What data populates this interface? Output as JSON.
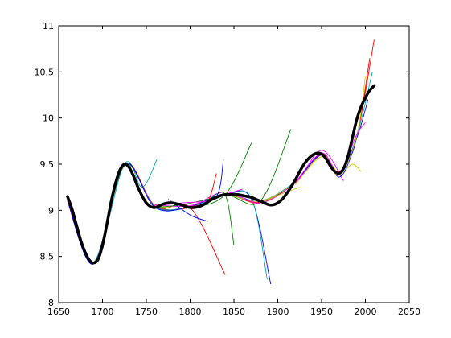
{
  "chart_data": {
    "type": "line",
    "title": "",
    "xlabel": "",
    "ylabel": "",
    "xlim": [
      1650,
      2050
    ],
    "ylim": [
      8,
      11
    ],
    "grid": false,
    "x_ticks": [
      1650,
      1700,
      1750,
      1800,
      1850,
      1900,
      1950,
      2000,
      2050
    ],
    "y_ticks": [
      8,
      8.5,
      9,
      9.5,
      10,
      10.5,
      11
    ],
    "x_tick_labels": [
      "1650",
      "1700",
      "1750",
      "1800",
      "1850",
      "1900",
      "1950",
      "2000",
      "2050"
    ],
    "y_tick_labels": [
      "8",
      "8.5",
      "9",
      "9.5",
      "10",
      "10.5",
      "11"
    ],
    "main_series": {
      "color": "#000000",
      "x": [
        1660,
        1665,
        1670,
        1675,
        1680,
        1685,
        1690,
        1695,
        1700,
        1705,
        1710,
        1715,
        1720,
        1725,
        1730,
        1735,
        1740,
        1745,
        1750,
        1755,
        1760,
        1765,
        1770,
        1775,
        1780,
        1785,
        1790,
        1795,
        1800,
        1805,
        1810,
        1815,
        1820,
        1825,
        1830,
        1835,
        1840,
        1845,
        1850,
        1855,
        1860,
        1865,
        1870,
        1875,
        1880,
        1885,
        1890,
        1895,
        1900,
        1905,
        1910,
        1915,
        1920,
        1925,
        1930,
        1935,
        1940,
        1945,
        1950,
        1955,
        1960,
        1965,
        1970,
        1975,
        1980,
        1985,
        1990,
        1995,
        2000,
        2005,
        2010
      ],
      "y": [
        9.15,
        9.02,
        8.85,
        8.68,
        8.55,
        8.46,
        8.43,
        8.47,
        8.62,
        8.85,
        9.1,
        9.3,
        9.44,
        9.5,
        9.47,
        9.38,
        9.26,
        9.16,
        9.08,
        9.04,
        9.03,
        9.05,
        9.07,
        9.08,
        9.08,
        9.07,
        9.06,
        9.04,
        9.03,
        9.03,
        9.04,
        9.06,
        9.09,
        9.12,
        9.14,
        9.16,
        9.17,
        9.17,
        9.17,
        9.17,
        9.16,
        9.15,
        9.14,
        9.12,
        9.1,
        9.08,
        9.06,
        9.06,
        9.08,
        9.12,
        9.18,
        9.25,
        9.33,
        9.42,
        9.5,
        9.56,
        9.6,
        9.62,
        9.61,
        9.56,
        9.48,
        9.42,
        9.4,
        9.45,
        9.58,
        9.78,
        9.98,
        10.12,
        10.22,
        10.3,
        10.35
      ]
    },
    "series": [
      {
        "color": "#ff0000",
        "x": [
          1660,
          1690,
          1725,
          1760,
          1800,
          1840
        ],
        "y": [
          9.1,
          8.43,
          9.5,
          9.03,
          9.03,
          8.3
        ]
      },
      {
        "color": "#00aaaa",
        "x": [
          1660,
          1690,
          1725,
          1745,
          1762
        ],
        "y": [
          9.12,
          8.43,
          9.5,
          9.25,
          9.55
        ]
      },
      {
        "color": "#008000",
        "x": [
          1660,
          1690,
          1725,
          1760,
          1800,
          1840,
          1870
        ],
        "y": [
          9.1,
          8.43,
          9.48,
          9.04,
          9.03,
          9.17,
          9.73
        ]
      },
      {
        "color": "#0000ff",
        "x": [
          1660,
          1690,
          1725,
          1760,
          1800,
          1840,
          1870,
          1892
        ],
        "y": [
          9.12,
          8.44,
          9.5,
          9.04,
          9.04,
          9.17,
          9.12,
          8.2
        ]
      },
      {
        "color": "#00aaaa",
        "x": [
          1660,
          1690,
          1725,
          1760,
          1800,
          1840,
          1870,
          1888
        ],
        "y": [
          9.14,
          8.44,
          9.49,
          9.05,
          9.03,
          9.16,
          9.13,
          8.25
        ]
      },
      {
        "color": "#008000",
        "x": [
          1660,
          1690,
          1725,
          1760,
          1800,
          1840,
          1880,
          1915
        ],
        "y": [
          9.13,
          8.43,
          9.5,
          9.04,
          9.04,
          9.17,
          9.1,
          9.88
        ]
      },
      {
        "color": "#ff0000",
        "x": [
          1660,
          1690,
          1725,
          1760,
          1800,
          1840,
          1880,
          1920,
          1950,
          1970,
          1990,
          2010
        ],
        "y": [
          9.1,
          8.43,
          9.49,
          9.04,
          9.04,
          9.17,
          9.09,
          9.3,
          9.6,
          9.42,
          9.8,
          10.85
        ]
      },
      {
        "color": "#ff0000",
        "x": [
          1660,
          1690,
          1725,
          1760,
          1800,
          1840,
          1880,
          1920,
          1950,
          1970,
          1990,
          2005
        ],
        "y": [
          9.12,
          8.43,
          9.5,
          9.05,
          9.03,
          9.17,
          9.08,
          9.3,
          9.61,
          9.41,
          9.8,
          10.65
        ]
      },
      {
        "color": "#00aaaa",
        "x": [
          1660,
          1690,
          1725,
          1760,
          1800,
          1840,
          1880,
          1920,
          1950,
          1970,
          1990,
          2008
        ],
        "y": [
          9.14,
          8.44,
          9.49,
          9.04,
          9.04,
          9.16,
          9.1,
          9.31,
          9.6,
          9.4,
          9.8,
          10.5
        ]
      },
      {
        "color": "#0000ff",
        "x": [
          1660,
          1690,
          1725,
          1760,
          1800,
          1840,
          1880,
          1920,
          1950,
          1970,
          1990,
          2003
        ],
        "y": [
          9.11,
          8.42,
          9.5,
          9.03,
          9.04,
          9.18,
          9.1,
          9.3,
          9.62,
          9.4,
          9.78,
          10.2
        ]
      },
      {
        "color": "#cccc00",
        "x": [
          1760,
          1800,
          1840,
          1880,
          1920,
          1950,
          1970,
          1985,
          1995
        ],
        "y": [
          9.04,
          9.03,
          9.16,
          9.1,
          9.3,
          9.6,
          9.4,
          9.5,
          9.42
        ]
      },
      {
        "color": "#ff00ff",
        "x": [
          1760,
          1800,
          1840,
          1880,
          1920,
          1950,
          1975
        ],
        "y": [
          9.06,
          9.05,
          9.2,
          9.08,
          9.3,
          9.65,
          9.32
        ]
      },
      {
        "color": "#008000",
        "x": [
          1760,
          1790,
          1820,
          1840,
          1850
        ],
        "y": [
          9.03,
          9.06,
          9.12,
          9.17,
          8.62
        ]
      },
      {
        "color": "#ff00ff",
        "x": [
          1755,
          1790,
          1820,
          1840,
          1860
        ],
        "y": [
          9.04,
          9.08,
          9.1,
          9.17,
          9.23
        ]
      },
      {
        "color": "#0000ff",
        "x": [
          1775,
          1800,
          1820
        ],
        "y": [
          9.12,
          8.95,
          8.88
        ]
      },
      {
        "color": "#0000ff",
        "x": [
          1800,
          1830,
          1838
        ],
        "y": [
          9.03,
          9.15,
          9.55
        ]
      },
      {
        "color": "#ff0000",
        "x": [
          1800,
          1820,
          1830
        ],
        "y": [
          9.04,
          9.1,
          9.4
        ]
      },
      {
        "color": "#cccc00",
        "x": [
          1880,
          1905,
          1925
        ],
        "y": [
          9.08,
          9.18,
          9.25
        ]
      },
      {
        "color": "#0000ff",
        "x": [
          1920,
          1950,
          1970,
          1985,
          1992
        ],
        "y": [
          9.3,
          9.6,
          9.36,
          9.62,
          9.88
        ]
      },
      {
        "color": "#cccc00",
        "x": [
          1920,
          1950,
          1970,
          1990,
          2000
        ],
        "y": [
          9.28,
          9.58,
          9.38,
          9.8,
          10.45
        ]
      },
      {
        "color": "#ff00ff",
        "x": [
          1920,
          1950,
          1970,
          1990,
          2000
        ],
        "y": [
          9.3,
          9.62,
          9.41,
          9.82,
          9.95
        ]
      }
    ]
  }
}
